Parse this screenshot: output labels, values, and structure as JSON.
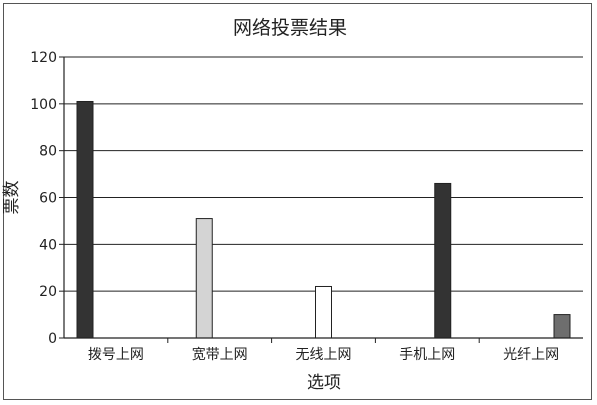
{
  "chart_data": {
    "type": "bar",
    "title": "网络投票结果",
    "xlabel": "选项",
    "ylabel": "票数",
    "categories": [
      "拨号上网",
      "宽带上网",
      "无线上网",
      "手机上网",
      "光纤上网"
    ],
    "values": [
      101,
      51,
      22,
      66,
      10
    ],
    "ylim": [
      0,
      120
    ],
    "yticks": [
      0,
      20,
      40,
      60,
      80,
      100,
      120
    ],
    "grid": true,
    "legend": "none",
    "colors": [
      "#333333",
      "#d4d4d4",
      "#ffffff",
      "#333333",
      "#6e6e6e"
    ],
    "bar_stroke": "#222222"
  }
}
